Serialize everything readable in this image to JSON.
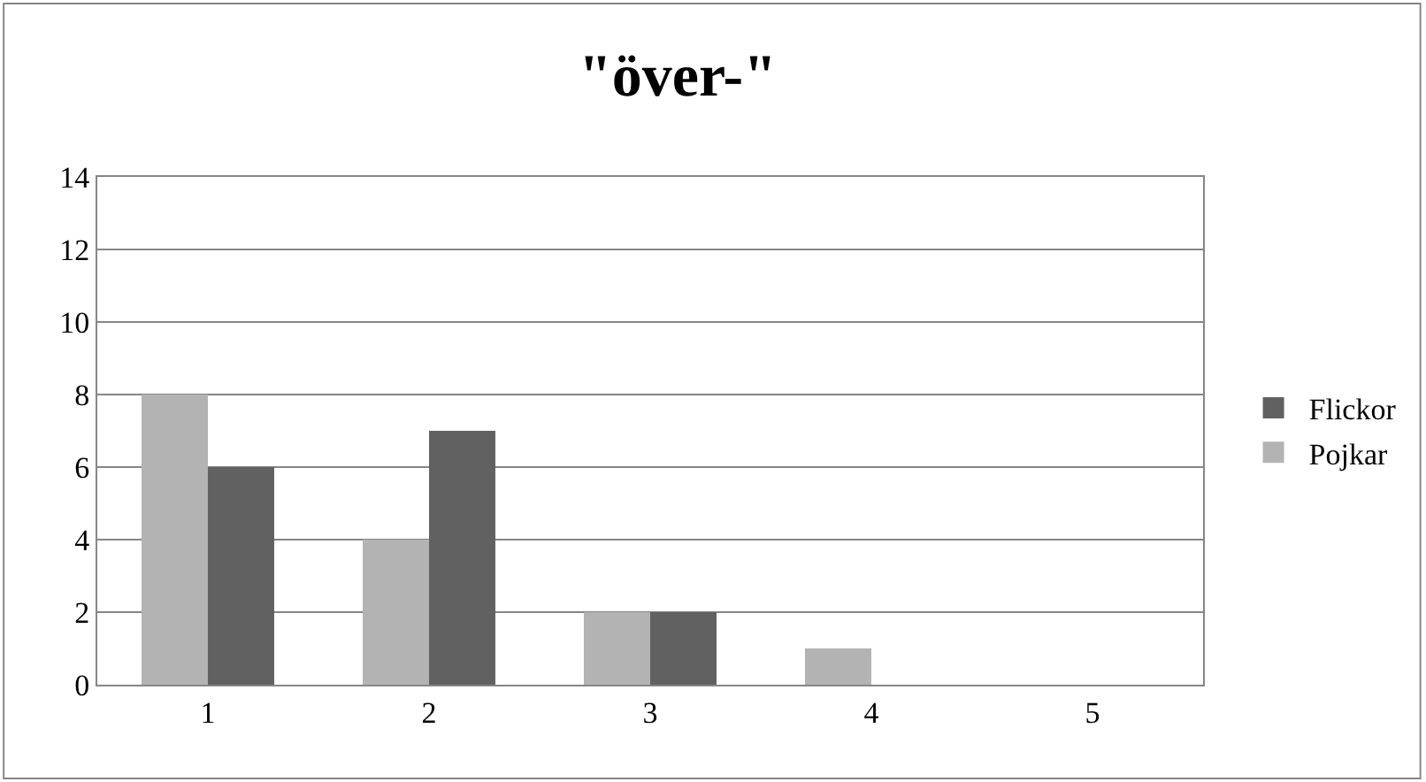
{
  "chart_data": {
    "type": "bar",
    "title": "\"över-\"",
    "categories": [
      "1",
      "2",
      "3",
      "4",
      "5"
    ],
    "series": [
      {
        "name": "Pojkar",
        "color": "#b3b3b3",
        "values": [
          8,
          4,
          2,
          1,
          0
        ]
      },
      {
        "name": "Flickor",
        "color": "#616161",
        "values": [
          6,
          7,
          2,
          0,
          0
        ]
      }
    ],
    "ylim": [
      0,
      14
    ],
    "yticks": [
      0,
      2,
      4,
      6,
      8,
      10,
      12,
      14
    ],
    "grid": "y",
    "legend": "right"
  }
}
